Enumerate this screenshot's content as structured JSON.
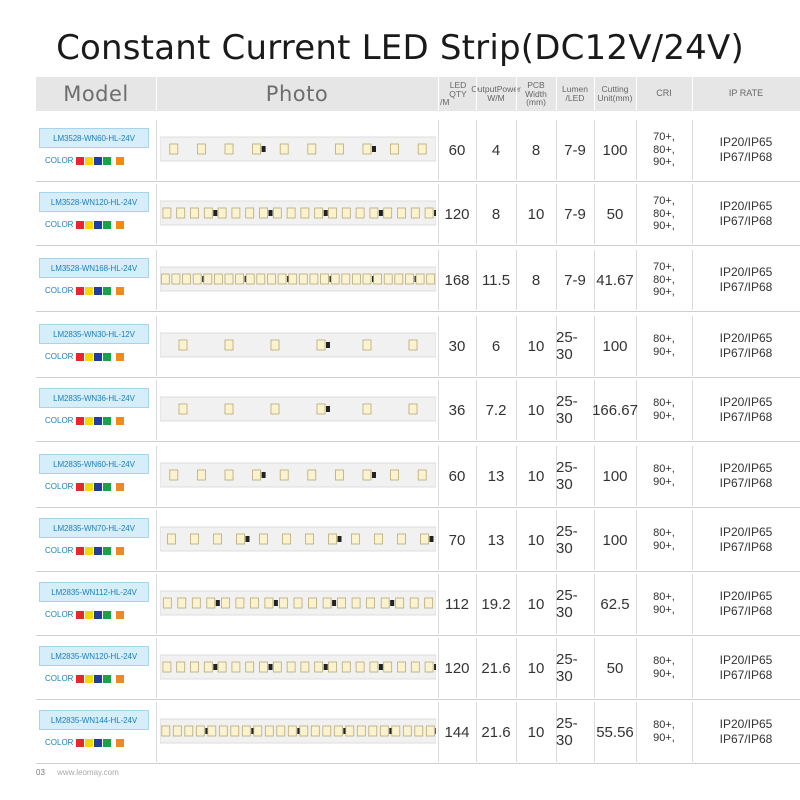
{
  "title": "Constant Current LED Strip(DC12V/24V)",
  "headers": {
    "model": "Model",
    "photo": "Photo",
    "led_qty": [
      "LED  QTY",
      "/M"
    ],
    "output_power": [
      "OutputPower",
      "W/M"
    ],
    "pcb_width": [
      "PCB Width",
      "(mm)"
    ],
    "lumen": [
      "Lumen",
      "/LED"
    ],
    "cutting": [
      "Cutting",
      "Unit(mm)"
    ],
    "cri": "CRI",
    "ip_rate": "IP RATE"
  },
  "color_label": "COLOR",
  "swatch_colors": [
    "#e8262d",
    "#f6d800",
    "#1f3fa0",
    "#16a34a",
    "#f08a1c"
  ],
  "rows": [
    {
      "model": "LM3528-WN60-HL-24V",
      "led_qty": "60",
      "power": "4",
      "pcb": "8",
      "lumen": "7-9",
      "cutting": "100",
      "cri": [
        "70+,",
        "80+,",
        "90+,"
      ],
      "ip": [
        "IP20/IP65",
        "IP67/IP68"
      ]
    },
    {
      "model": "LM3528-WN120-HL-24V",
      "led_qty": "120",
      "power": "8",
      "pcb": "10",
      "lumen": "7-9",
      "cutting": "50",
      "cri": [
        "70+,",
        "80+,",
        "90+,"
      ],
      "ip": [
        "IP20/IP65",
        "IP67/IP68"
      ]
    },
    {
      "model": "LM3528-WN168-HL-24V",
      "led_qty": "168",
      "power": "11.5",
      "pcb": "8",
      "lumen": "7-9",
      "cutting": "41.67",
      "cri": [
        "70+,",
        "80+,",
        "90+,"
      ],
      "ip": [
        "IP20/IP65",
        "IP67/IP68"
      ]
    },
    {
      "model": "LM2835-WN30-HL-12V",
      "led_qty": "30",
      "power": "6",
      "pcb": "10",
      "lumen": "25-30",
      "cutting": "100",
      "cri": [
        "80+,",
        "90+,"
      ],
      "ip": [
        "IP20/IP65",
        "IP67/IP68"
      ]
    },
    {
      "model": "LM2835-WN36-HL-24V",
      "led_qty": "36",
      "power": "7.2",
      "pcb": "10",
      "lumen": "25-30",
      "cutting": "166.67",
      "cri": [
        "80+,",
        "90+,"
      ],
      "ip": [
        "IP20/IP65",
        "IP67/IP68"
      ]
    },
    {
      "model": "LM2835-WN60-HL-24V",
      "led_qty": "60",
      "power": "13",
      "pcb": "10",
      "lumen": "25-30",
      "cutting": "100",
      "cri": [
        "80+,",
        "90+,"
      ],
      "ip": [
        "IP20/IP65",
        "IP67/IP68"
      ]
    },
    {
      "model": "LM2835-WN70-HL-24V",
      "led_qty": "70",
      "power": "13",
      "pcb": "10",
      "lumen": "25-30",
      "cutting": "100",
      "cri": [
        "80+,",
        "90+,"
      ],
      "ip": [
        "IP20/IP65",
        "IP67/IP68"
      ]
    },
    {
      "model": "LM2835-WN112-HL-24V",
      "led_qty": "112",
      "power": "19.2",
      "pcb": "10",
      "lumen": "25-30",
      "cutting": "62.5",
      "cri": [
        "80+,",
        "90+,"
      ],
      "ip": [
        "IP20/IP65",
        "IP67/IP68"
      ]
    },
    {
      "model": "LM2835-WN120-HL-24V",
      "led_qty": "120",
      "power": "21.6",
      "pcb": "10",
      "lumen": "25-30",
      "cutting": "50",
      "cri": [
        "80+,",
        "90+,"
      ],
      "ip": [
        "IP20/IP65",
        "IP67/IP68"
      ]
    },
    {
      "model": "LM2835-WN144-HL-24V",
      "led_qty": "144",
      "power": "21.6",
      "pcb": "10",
      "lumen": "25-30",
      "cutting": "55.56",
      "cri": [
        "80+,",
        "90+,"
      ],
      "ip": [
        "IP20/IP65",
        "IP67/IP68"
      ]
    }
  ],
  "footer": {
    "page": "03",
    "url": "www.leomay.com"
  }
}
